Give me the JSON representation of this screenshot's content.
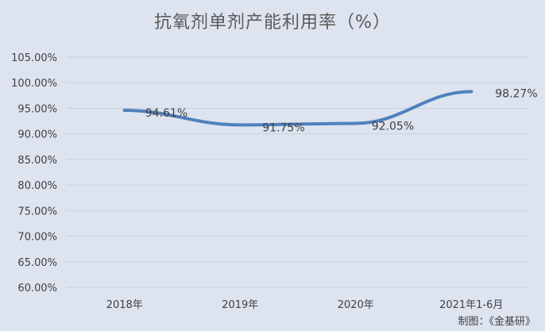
{
  "chart_data": {
    "type": "line",
    "title": "抗氧剂单剂产能利用率（%）",
    "categories": [
      "2018年",
      "2019年",
      "2020年",
      "2021年1-6月"
    ],
    "series": [
      {
        "values": [
          94.61,
          91.75,
          92.05,
          98.27
        ]
      }
    ],
    "data_labels": [
      "94.61%",
      "91.75%",
      "92.05%",
      "98.27%"
    ],
    "y_ticks": [
      "60.00%",
      "65.00%",
      "70.00%",
      "75.00%",
      "80.00%",
      "85.00%",
      "90.00%",
      "95.00%",
      "100.00%",
      "105.00%"
    ],
    "ylim": [
      60,
      105
    ],
    "grid": true,
    "legend": "none",
    "colors": {
      "line": "#4f81bd",
      "grid": "#c8d0dc",
      "text": "#404040",
      "background": "#dde4ef"
    }
  },
  "credit": "制图：《金基研》"
}
